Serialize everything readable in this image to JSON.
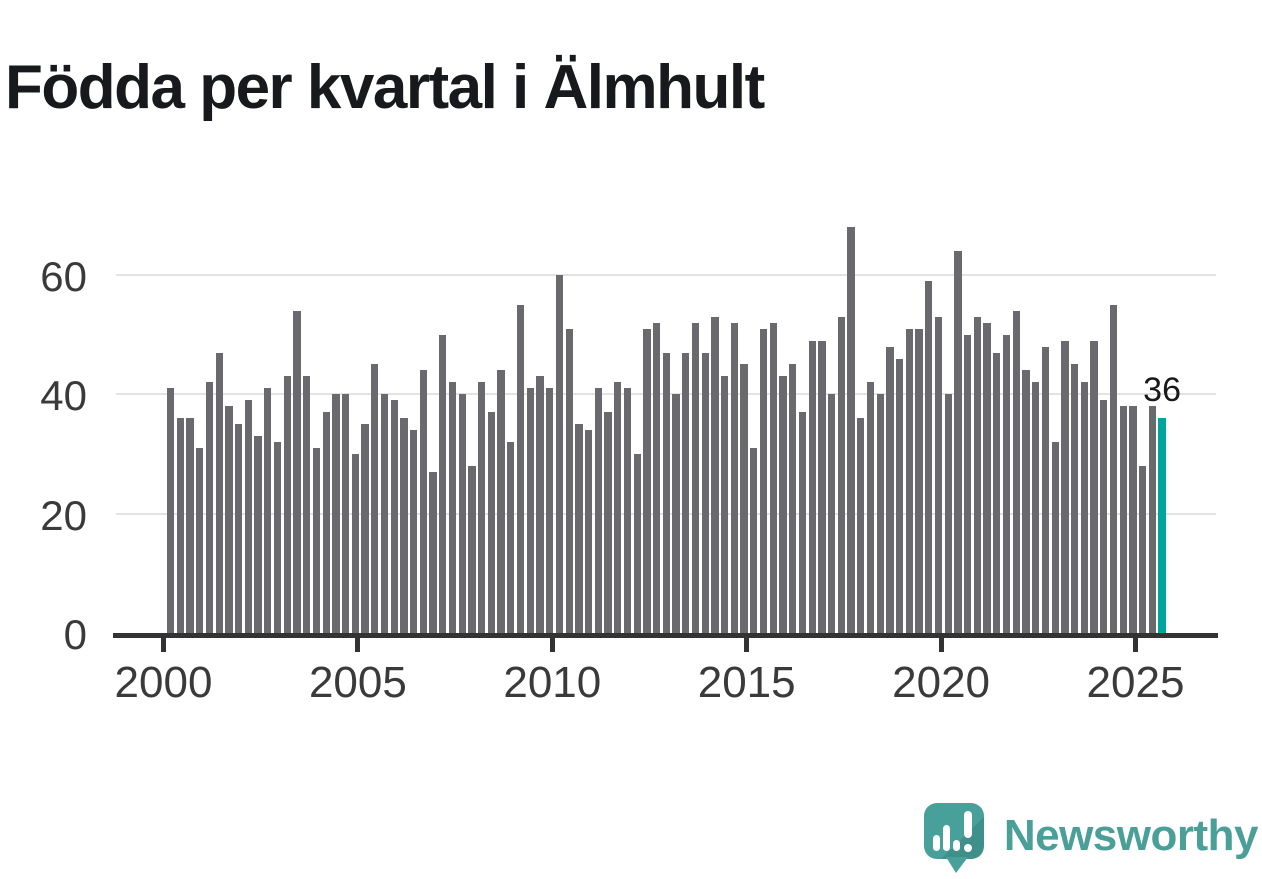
{
  "title": "Födda per kvartal i Älmhult",
  "annotation": {
    "label": "36"
  },
  "footer": {
    "brand": "Newsworthy"
  },
  "colors": {
    "bar": "#6a696d",
    "highlight": "#00a59c",
    "gridline": "#e3e3e3",
    "axis": "#333333",
    "axis_label": "#3a3a3a",
    "title": "#17191c",
    "brand": "#4aa099"
  },
  "chart_data": {
    "type": "bar",
    "title": "Födda per kvartal i Älmhult",
    "xlabel": "",
    "ylabel": "",
    "frequency": "quarterly",
    "start": "2000 Q1",
    "end": "2025 Q3",
    "grid": "horizontal",
    "legend": "none",
    "ylim": [
      0,
      72
    ],
    "yticks": [
      0,
      20,
      40,
      60
    ],
    "xticks": [
      2000,
      2005,
      2010,
      2015,
      2020,
      2025
    ],
    "highlight_index": 102,
    "highlight_value_label": "36",
    "categories": [
      "2000 Q1",
      "2000 Q2",
      "2000 Q3",
      "2000 Q4",
      "2001 Q1",
      "2001 Q2",
      "2001 Q3",
      "2001 Q4",
      "2002 Q1",
      "2002 Q2",
      "2002 Q3",
      "2002 Q4",
      "2003 Q1",
      "2003 Q2",
      "2003 Q3",
      "2003 Q4",
      "2004 Q1",
      "2004 Q2",
      "2004 Q3",
      "2004 Q4",
      "2005 Q1",
      "2005 Q2",
      "2005 Q3",
      "2005 Q4",
      "2006 Q1",
      "2006 Q2",
      "2006 Q3",
      "2006 Q4",
      "2007 Q1",
      "2007 Q2",
      "2007 Q3",
      "2007 Q4",
      "2008 Q1",
      "2008 Q2",
      "2008 Q3",
      "2008 Q4",
      "2009 Q1",
      "2009 Q2",
      "2009 Q3",
      "2009 Q4",
      "2010 Q1",
      "2010 Q2",
      "2010 Q3",
      "2010 Q4",
      "2011 Q1",
      "2011 Q2",
      "2011 Q3",
      "2011 Q4",
      "2012 Q1",
      "2012 Q2",
      "2012 Q3",
      "2012 Q4",
      "2013 Q1",
      "2013 Q2",
      "2013 Q3",
      "2013 Q4",
      "2014 Q1",
      "2014 Q2",
      "2014 Q3",
      "2014 Q4",
      "2015 Q1",
      "2015 Q2",
      "2015 Q3",
      "2015 Q4",
      "2016 Q1",
      "2016 Q2",
      "2016 Q3",
      "2016 Q4",
      "2017 Q1",
      "2017 Q2",
      "2017 Q3",
      "2017 Q4",
      "2018 Q1",
      "2018 Q2",
      "2018 Q3",
      "2018 Q4",
      "2019 Q1",
      "2019 Q2",
      "2019 Q3",
      "2019 Q4",
      "2020 Q1",
      "2020 Q2",
      "2020 Q3",
      "2020 Q4",
      "2021 Q1",
      "2021 Q2",
      "2021 Q3",
      "2021 Q4",
      "2022 Q1",
      "2022 Q2",
      "2022 Q3",
      "2022 Q4",
      "2023 Q1",
      "2023 Q2",
      "2023 Q3",
      "2023 Q4",
      "2024 Q1",
      "2024 Q2",
      "2024 Q3",
      "2024 Q4",
      "2025 Q1",
      "2025 Q2",
      "2025 Q3"
    ],
    "values": [
      41,
      36,
      36,
      31,
      42,
      47,
      38,
      35,
      39,
      33,
      41,
      32,
      43,
      54,
      43,
      31,
      37,
      40,
      40,
      30,
      35,
      45,
      40,
      39,
      36,
      34,
      44,
      27,
      50,
      42,
      40,
      28,
      42,
      37,
      44,
      32,
      55,
      41,
      43,
      41,
      60,
      51,
      35,
      34,
      41,
      37,
      42,
      41,
      30,
      51,
      52,
      47,
      40,
      47,
      52,
      47,
      53,
      43,
      52,
      45,
      31,
      51,
      52,
      43,
      45,
      37,
      49,
      49,
      40,
      53,
      68,
      36,
      42,
      40,
      48,
      46,
      51,
      51,
      59,
      53,
      40,
      64,
      50,
      53,
      52,
      47,
      50,
      54,
      44,
      42,
      48,
      32,
      49,
      45,
      42,
      49,
      39,
      55,
      38,
      38,
      28,
      38,
      36
    ]
  }
}
